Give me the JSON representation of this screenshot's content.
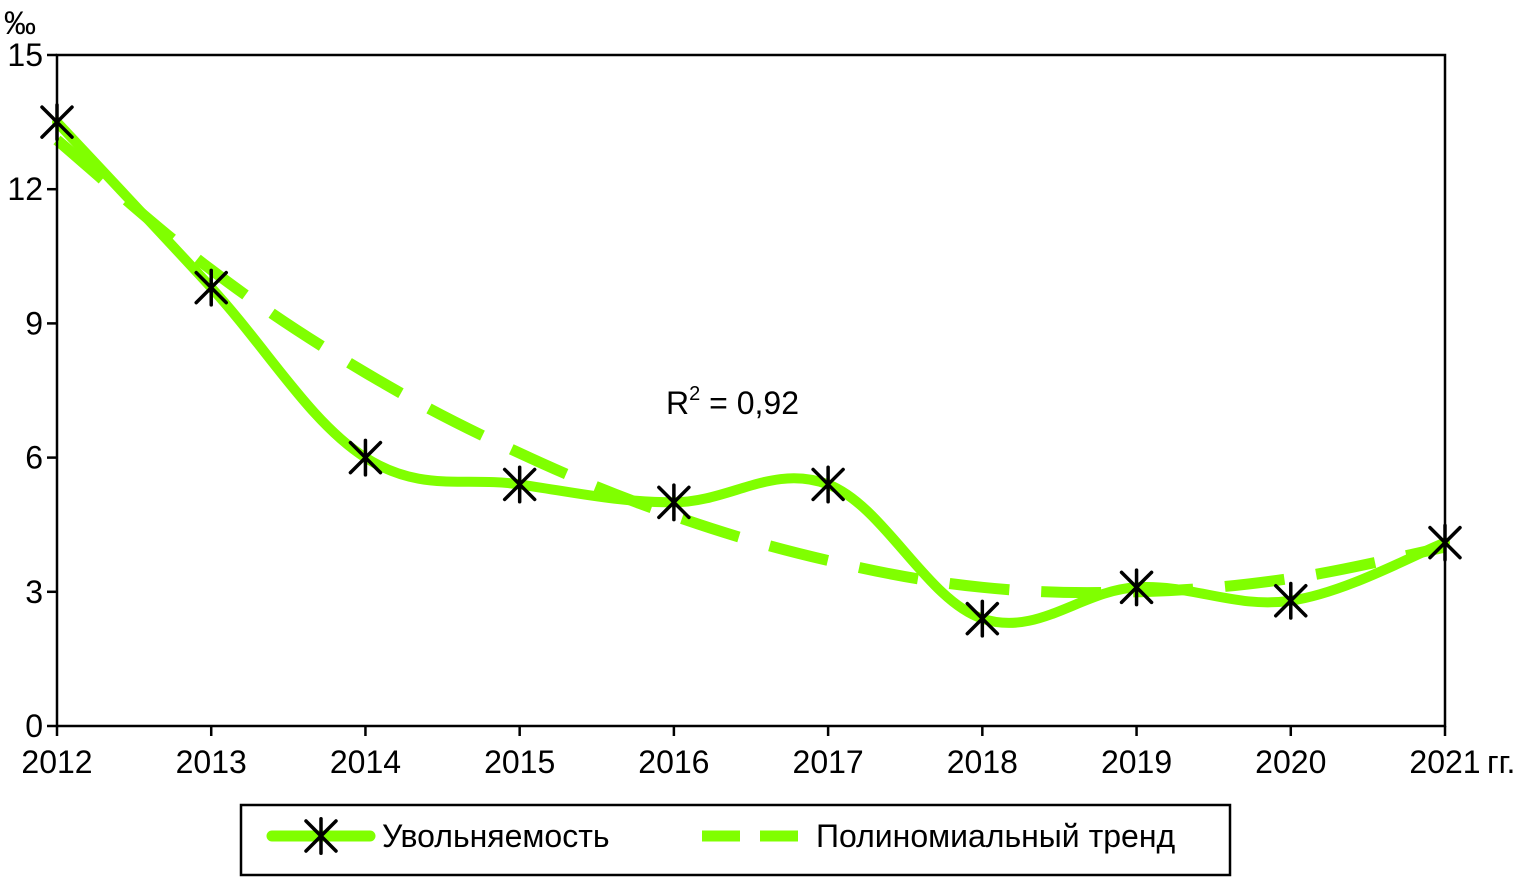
{
  "chart_data": {
    "type": "line",
    "ylabel": "‰",
    "x_suffix": "гг.",
    "x": [
      "2012",
      "2013",
      "2014",
      "2015",
      "2016",
      "2017",
      "2018",
      "2019",
      "2020",
      "2021"
    ],
    "ylim": [
      0,
      15
    ],
    "yticks": [
      0,
      3,
      6,
      9,
      12,
      15
    ],
    "grid": false,
    "legend_position": "bottom",
    "series": [
      {
        "name": "Увольняемость",
        "values": [
          13.5,
          9.8,
          6.0,
          5.4,
          5.0,
          5.4,
          2.4,
          3.1,
          2.8,
          4.1
        ],
        "color": "#80ff00",
        "marker": "asterisk",
        "line": "solid"
      },
      {
        "name": "Полиномиальный тренд",
        "values": [
          13.1,
          10.2,
          7.9,
          6.1,
          4.7,
          3.7,
          3.1,
          3.0,
          3.3,
          4.0
        ],
        "color": "#80ff00",
        "line": "dashed"
      }
    ],
    "annotation": {
      "label": "R",
      "superscript": "2",
      "rest": " = 0,92"
    }
  }
}
